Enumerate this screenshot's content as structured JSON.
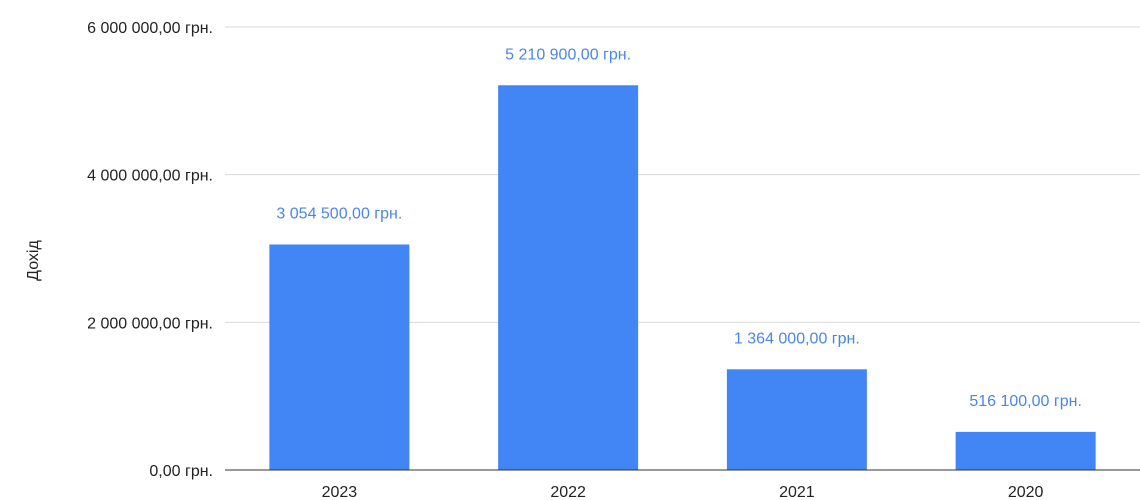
{
  "chart_data": {
    "type": "bar",
    "title": "",
    "xlabel": "",
    "ylabel": "Дохід",
    "categories": [
      "2023",
      "2022",
      "2021",
      "2020"
    ],
    "values": [
      3054500,
      5210900,
      1364000,
      516100
    ],
    "data_labels": [
      "3 054 500,00 грн.",
      "5 210 900,00 грн.",
      "1 364 000,00 грн.",
      "516 100,00 грн."
    ],
    "ylim": [
      0,
      6000000
    ],
    "yticks": [
      0,
      2000000,
      4000000,
      6000000
    ],
    "ytick_labels": [
      "0,00 грн.",
      "2 000 000,00 грн.",
      "4 000 000,00 грн.",
      "6 000 000,00 грн."
    ],
    "grid": true,
    "legend": "none",
    "colors": {
      "bar": "#4285f4",
      "data_label": "#4a86e8"
    }
  }
}
